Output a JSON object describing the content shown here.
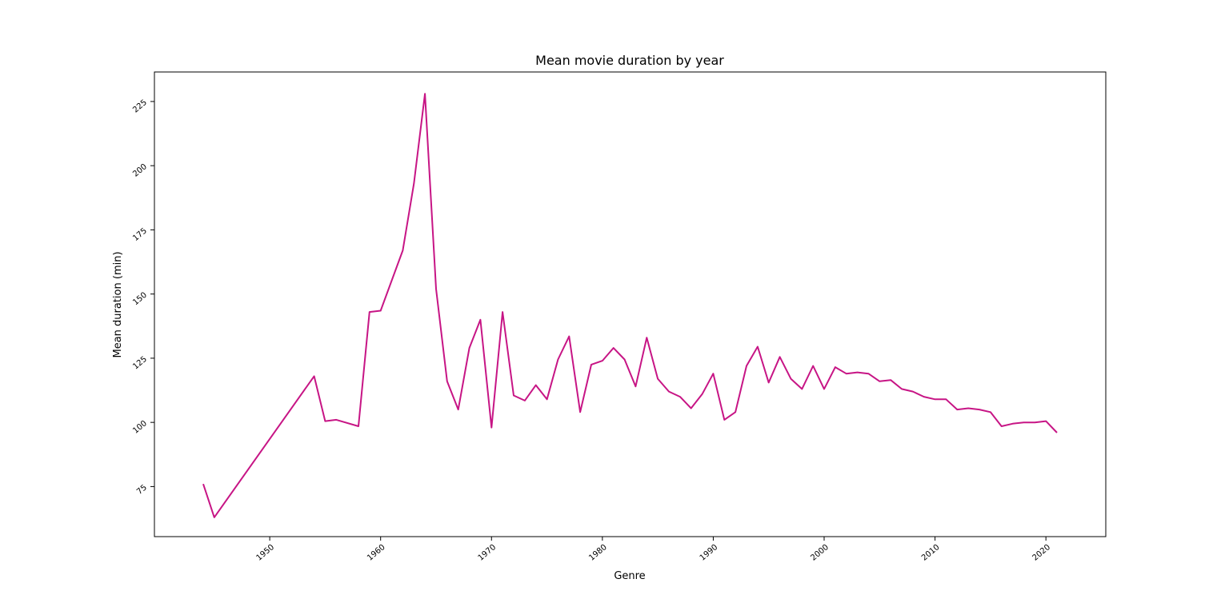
{
  "chart_data": {
    "type": "line",
    "title": "Mean movie duration by year",
    "xlabel": "Genre",
    "ylabel": "Mean duration (min)",
    "line_color": "#C71585",
    "xlim": [
      1939.6,
      2025.4
    ],
    "ylim": [
      55.5,
      236.5
    ],
    "xticks": [
      1950,
      1960,
      1970,
      1980,
      1990,
      2000,
      2010,
      2020
    ],
    "yticks": [
      75,
      100,
      125,
      150,
      175,
      200,
      225
    ],
    "grid": false,
    "series": [
      {
        "x": [
          1944,
          1945,
          1954,
          1955,
          1956,
          1958,
          1959,
          1960,
          1962,
          1963,
          1964,
          1965,
          1966,
          1967,
          1968,
          1969,
          1970,
          1971,
          1972,
          1973,
          1974,
          1975,
          1976,
          1977,
          1978,
          1979,
          1980,
          1981,
          1982,
          1983,
          1984,
          1985,
          1986,
          1987,
          1988,
          1989,
          1990,
          1991,
          1992,
          1993,
          1994,
          1995,
          1996,
          1997,
          1998,
          1999,
          2000,
          2001,
          2002,
          2003,
          2004,
          2005,
          2006,
          2007,
          2008,
          2009,
          2010,
          2011,
          2012,
          2013,
          2014,
          2015,
          2016,
          2017,
          2018,
          2019,
          2020,
          2021
        ],
        "y": [
          76,
          63,
          118,
          100.5,
          101,
          98.5,
          143,
          143.5,
          167,
          193,
          228,
          152,
          116,
          105,
          129,
          140,
          98,
          143,
          110.5,
          108.5,
          114.5,
          109,
          124.5,
          133.5,
          104,
          122.5,
          124,
          129,
          124.5,
          114,
          133,
          117,
          112,
          110,
          105.5,
          111,
          119,
          101,
          104,
          122,
          129.5,
          115.5,
          125.5,
          117,
          113,
          122,
          113,
          121.5,
          119,
          119.5,
          119,
          116,
          116.5,
          113,
          112,
          110,
          109,
          109,
          105,
          105.5,
          105,
          104,
          98.5,
          99.5,
          100,
          100,
          100.5,
          96
        ]
      }
    ]
  }
}
